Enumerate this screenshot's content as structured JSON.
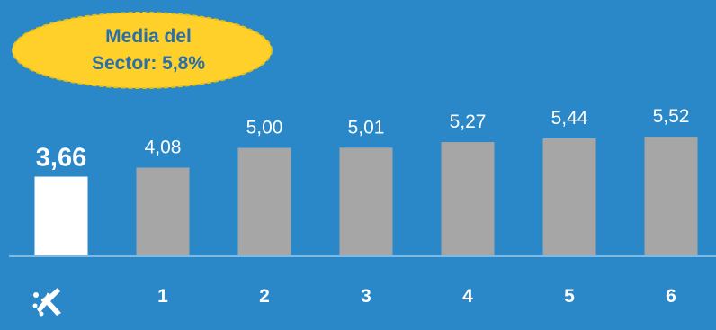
{
  "badge": {
    "line1": "Media del",
    "line2": "Sector: 5,8%"
  },
  "logo": {
    "icon": "caixabank-star-icon"
  },
  "colors": {
    "background": "#2a87c8",
    "highlight_bar": "#ffffff",
    "bar": "#a6a6a6",
    "badge_fill": "#ffd02a",
    "badge_text": "#2a6fa8",
    "axis": "#7fb8e0"
  },
  "chart_data": {
    "type": "bar",
    "categories": [
      "",
      "1",
      "2",
      "3",
      "4",
      "5",
      "6"
    ],
    "values": [
      3.66,
      4.08,
      5.0,
      5.01,
      5.27,
      5.44,
      5.52
    ],
    "value_labels": [
      "3,66",
      "4,08",
      "5,00",
      "5,01",
      "5,27",
      "5,44",
      "5,52"
    ],
    "highlight_index": 0,
    "ylim": [
      0,
      6
    ],
    "grid": false,
    "legend": "none"
  }
}
